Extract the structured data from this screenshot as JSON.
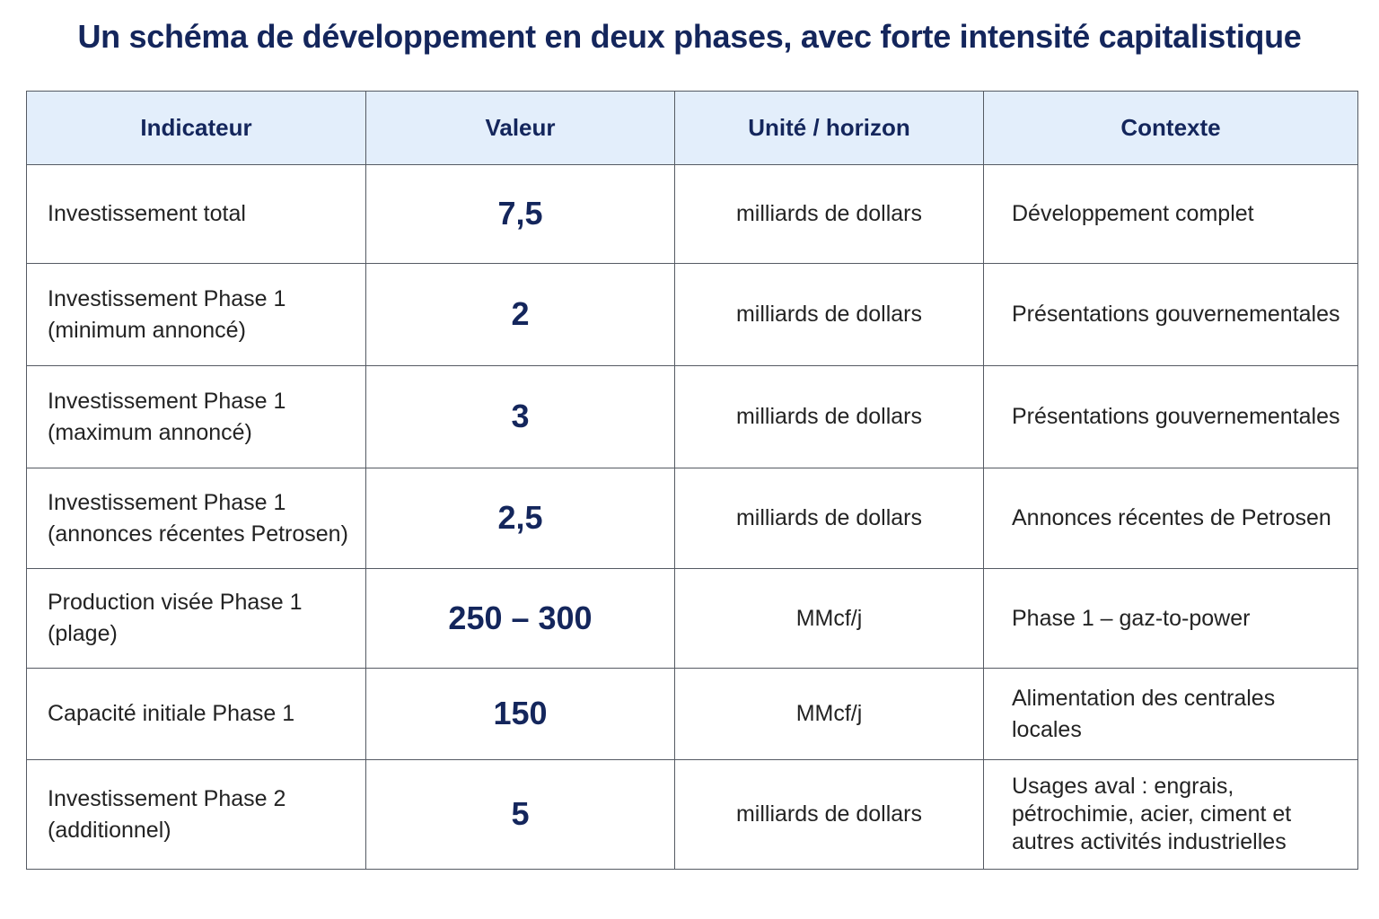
{
  "title": "Un schéma de développement en deux phases, avec forte intensité capitalistique",
  "table": {
    "headers": [
      "Indicateur",
      "Valeur",
      "Unité / horizon",
      "Contexte"
    ],
    "rows": [
      {
        "indicator_line1": "Investissement total",
        "indicator_line2": "",
        "value": "7,5",
        "unit": "milliards de dollars",
        "context": "Développement complet"
      },
      {
        "indicator_line1": "Investissement Phase 1",
        "indicator_line2": "(minimum annoncé)",
        "value": "2",
        "unit": "milliards de dollars",
        "context": "Présentations gouvernementales"
      },
      {
        "indicator_line1": "Investissement Phase 1",
        "indicator_line2": "(maximum annoncé)",
        "value": "3",
        "unit": "milliards de dollars",
        "context": "Présentations gouvernementales"
      },
      {
        "indicator_line1": "Investissement Phase 1",
        "indicator_line2": "(annonces récentes Petrosen)",
        "value": "2,5",
        "unit": "milliards de dollars",
        "context": "Annonces récentes de Petrosen"
      },
      {
        "indicator_line1": "Production visée Phase 1",
        "indicator_line2": "(plage)",
        "value": "250 – 300",
        "unit": "MMcf/j",
        "context": "Phase 1 – gaz-to-power"
      },
      {
        "indicator_line1": "Capacité initiale Phase 1",
        "indicator_line2": "",
        "value": "150",
        "unit": "MMcf/j",
        "context": "Alimentation des centrales locales"
      },
      {
        "indicator_line1": "Investissement Phase 2",
        "indicator_line2": "(additionnel)",
        "value": "5",
        "unit": "milliards de dollars",
        "context": "Usages aval : engrais, pétrochimie, acier, ciment et autres activités industrielles"
      }
    ]
  }
}
